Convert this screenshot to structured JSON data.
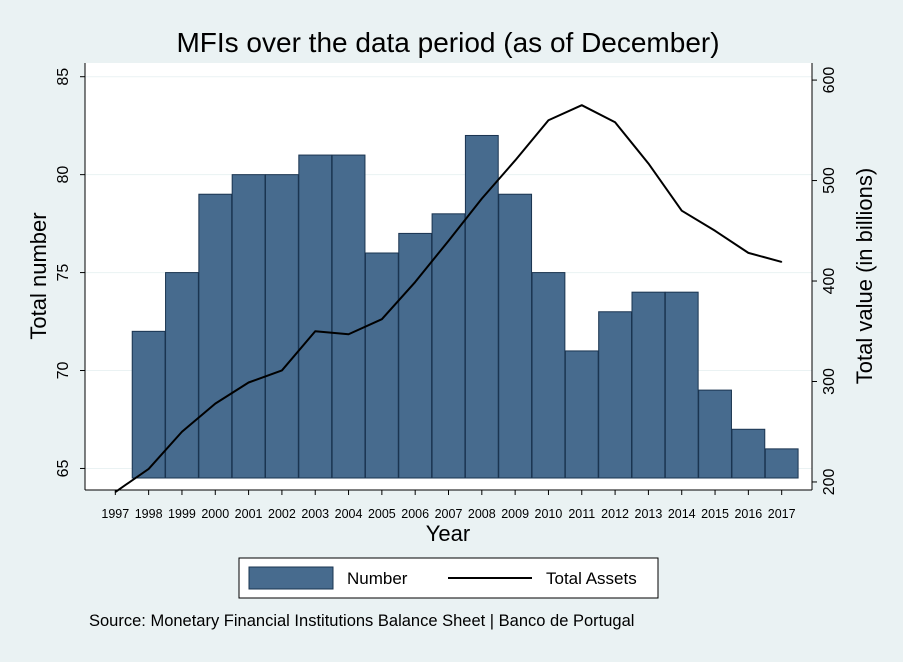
{
  "chart_data": {
    "type": "bar+line",
    "title": "MFIs over the data period (as of December)",
    "xlabel": "Year",
    "ylabel_left": "Total number",
    "ylabel_right": "Total value (in billions)",
    "x_ticks": [
      "1997",
      "1998",
      "1999",
      "2000",
      "2001",
      "2002",
      "2003",
      "2004",
      "2005",
      "2006",
      "2007",
      "2008",
      "2009",
      "2010",
      "2011",
      "2012",
      "2013",
      "2014",
      "2015",
      "2016",
      "2017"
    ],
    "left_axis": {
      "range": [
        63.9,
        85.7
      ],
      "ticks": [
        65,
        70,
        75,
        80,
        85
      ]
    },
    "right_axis": {
      "range": [
        192,
        617
      ],
      "ticks": [
        200,
        300,
        400,
        500,
        600
      ]
    },
    "grid": true,
    "series": [
      {
        "name": "Number",
        "type": "bar",
        "axis": "left",
        "color": "#476b8e",
        "x": [
          "1998",
          "1999",
          "2000",
          "2001",
          "2002",
          "2003",
          "2004",
          "2005",
          "2006",
          "2007",
          "2008",
          "2009",
          "2010",
          "2011",
          "2012",
          "2013",
          "2014",
          "2015",
          "2016",
          "2017"
        ],
        "values": [
          72,
          75,
          79,
          80,
          80,
          81,
          81,
          76,
          77,
          78,
          82,
          79,
          75,
          71,
          73,
          74,
          74,
          69,
          67,
          66
        ]
      },
      {
        "name": "Total Assets",
        "type": "line",
        "axis": "right",
        "color": "#000000",
        "x": [
          "1997",
          "1998",
          "1999",
          "2000",
          "2001",
          "2002",
          "2003",
          "2004",
          "2005",
          "2006",
          "2007",
          "2008",
          "2009",
          "2010",
          "2011",
          "2012",
          "2013",
          "2014",
          "2015",
          "2016",
          "2017"
        ],
        "values": [
          190,
          213,
          250,
          278,
          299,
          311,
          350,
          347,
          362,
          399,
          440,
          482,
          520,
          560,
          575,
          558,
          517,
          470,
          450,
          428,
          419
        ]
      }
    ],
    "legend": {
      "position": "bottom",
      "entries": [
        "Number",
        "Total Assets"
      ]
    },
    "note": "Source: Monetary Financial Institutions Balance Sheet | Banco de Portugal"
  }
}
